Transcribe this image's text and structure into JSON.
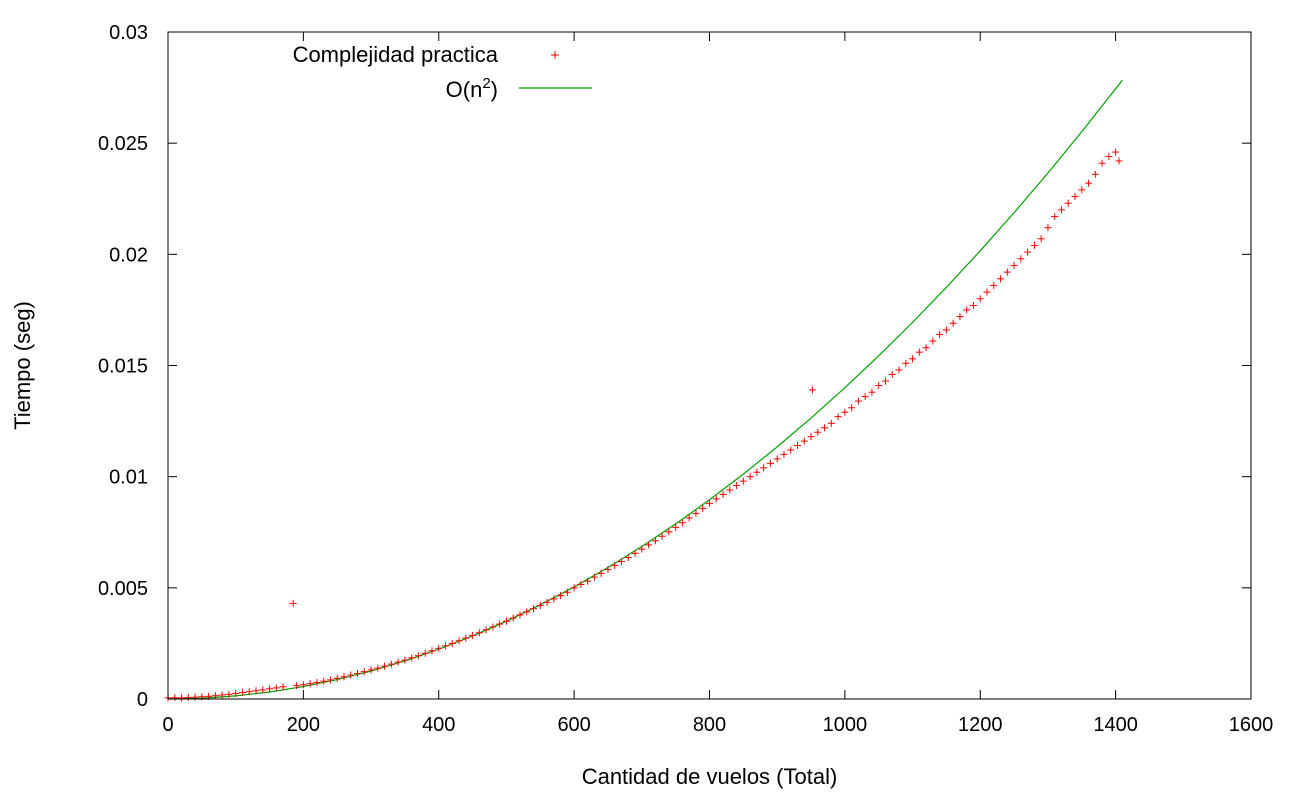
{
  "chart_data": {
    "type": "scatter",
    "title": "",
    "xlabel": "Cantidad de vuelos (Total)",
    "ylabel": "Tiempo (seg)",
    "xlim": [
      0,
      1600
    ],
    "ylim": [
      0,
      0.03
    ],
    "x_ticks": [
      "0",
      "200",
      "400",
      "600",
      "800",
      "1000",
      "1200",
      "1400",
      "1600"
    ],
    "y_ticks": [
      "0",
      "0.005",
      "0.01",
      "0.015",
      "0.02",
      "0.025",
      "0.03"
    ],
    "grid": false,
    "legend_position": "top-left",
    "series": [
      {
        "name": "Complejidad practica",
        "kind": "scatter",
        "marker": "plus",
        "color": "#ff0000",
        "points": [
          [
            0,
            5e-05
          ],
          [
            10,
            6e-05
          ],
          [
            20,
            5e-05
          ],
          [
            30,
            7e-05
          ],
          [
            40,
            8e-05
          ],
          [
            50,
            0.0001
          ],
          [
            60,
            0.00012
          ],
          [
            70,
            0.00015
          ],
          [
            80,
            0.00018
          ],
          [
            90,
            0.00021
          ],
          [
            100,
            0.00025
          ],
          [
            110,
            0.00029
          ],
          [
            120,
            0.00033
          ],
          [
            130,
            0.00037
          ],
          [
            140,
            0.00041
          ],
          [
            150,
            0.00046
          ],
          [
            160,
            0.0005
          ],
          [
            170,
            0.00055
          ],
          [
            185,
            0.0043
          ],
          [
            190,
            0.0006
          ],
          [
            200,
            0.00064
          ],
          [
            210,
            0.00069
          ],
          [
            220,
            0.00074
          ],
          [
            230,
            0.0008
          ],
          [
            240,
            0.00086
          ],
          [
            250,
            0.00093
          ],
          [
            260,
            0.001
          ],
          [
            270,
            0.00108
          ],
          [
            280,
            0.00115
          ],
          [
            290,
            0.00123
          ],
          [
            300,
            0.00131
          ],
          [
            310,
            0.00139
          ],
          [
            320,
            0.00148
          ],
          [
            330,
            0.00157
          ],
          [
            340,
            0.00166
          ],
          [
            350,
            0.00175
          ],
          [
            360,
            0.00185
          ],
          [
            370,
            0.00195
          ],
          [
            380,
            0.00206
          ],
          [
            390,
            0.00217
          ],
          [
            400,
            0.00228
          ],
          [
            410,
            0.00239
          ],
          [
            420,
            0.0025
          ],
          [
            430,
            0.00262
          ],
          [
            440,
            0.00274
          ],
          [
            450,
            0.00286
          ],
          [
            460,
            0.00298
          ],
          [
            470,
            0.00311
          ],
          [
            480,
            0.00324
          ],
          [
            490,
            0.00337
          ],
          [
            500,
            0.0035
          ],
          [
            510,
            0.00364
          ],
          [
            520,
            0.00378
          ],
          [
            530,
            0.00392
          ],
          [
            540,
            0.00406
          ],
          [
            550,
            0.0042
          ],
          [
            560,
            0.00435
          ],
          [
            570,
            0.0045
          ],
          [
            580,
            0.00465
          ],
          [
            590,
            0.0048
          ],
          [
            600,
            0.005
          ],
          [
            610,
            0.00515
          ],
          [
            620,
            0.0053
          ],
          [
            630,
            0.00548
          ],
          [
            640,
            0.00565
          ],
          [
            650,
            0.00582
          ],
          [
            660,
            0.006
          ],
          [
            670,
            0.00618
          ],
          [
            680,
            0.00636
          ],
          [
            690,
            0.00655
          ],
          [
            700,
            0.00674
          ],
          [
            710,
            0.00693
          ],
          [
            720,
            0.00712
          ],
          [
            730,
            0.00732
          ],
          [
            740,
            0.00752
          ],
          [
            750,
            0.00772
          ],
          [
            760,
            0.00793
          ],
          [
            770,
            0.00814
          ],
          [
            780,
            0.00835
          ],
          [
            790,
            0.00857
          ],
          [
            800,
            0.0088
          ],
          [
            810,
            0.009
          ],
          [
            820,
            0.0092
          ],
          [
            830,
            0.0094
          ],
          [
            840,
            0.0096
          ],
          [
            850,
            0.0098
          ],
          [
            860,
            0.01
          ],
          [
            870,
            0.0102
          ],
          [
            880,
            0.0104
          ],
          [
            890,
            0.0106
          ],
          [
            900,
            0.0108
          ],
          [
            910,
            0.011
          ],
          [
            920,
            0.0112
          ],
          [
            930,
            0.0114
          ],
          [
            940,
            0.0116
          ],
          [
            950,
            0.0118
          ],
          [
            952,
            0.0139
          ],
          [
            960,
            0.012
          ],
          [
            970,
            0.0122
          ],
          [
            980,
            0.0124
          ],
          [
            990,
            0.0127
          ],
          [
            1000,
            0.0129
          ],
          [
            1010,
            0.0131
          ],
          [
            1020,
            0.0134
          ],
          [
            1030,
            0.0136
          ],
          [
            1040,
            0.0138
          ],
          [
            1050,
            0.0141
          ],
          [
            1060,
            0.0143
          ],
          [
            1070,
            0.0146
          ],
          [
            1080,
            0.0148
          ],
          [
            1090,
            0.0151
          ],
          [
            1100,
            0.0153
          ],
          [
            1110,
            0.0156
          ],
          [
            1120,
            0.0158
          ],
          [
            1130,
            0.0161
          ],
          [
            1140,
            0.0164
          ],
          [
            1150,
            0.0166
          ],
          [
            1160,
            0.0169
          ],
          [
            1170,
            0.0172
          ],
          [
            1180,
            0.0175
          ],
          [
            1190,
            0.0177
          ],
          [
            1200,
            0.018
          ],
          [
            1210,
            0.0183
          ],
          [
            1220,
            0.0186
          ],
          [
            1230,
            0.0189
          ],
          [
            1240,
            0.0192
          ],
          [
            1250,
            0.0195
          ],
          [
            1260,
            0.0198
          ],
          [
            1270,
            0.0201
          ],
          [
            1280,
            0.0204
          ],
          [
            1290,
            0.0207
          ],
          [
            1300,
            0.0212
          ],
          [
            1310,
            0.0217
          ],
          [
            1320,
            0.022
          ],
          [
            1330,
            0.0223
          ],
          [
            1340,
            0.0226
          ],
          [
            1350,
            0.0229
          ],
          [
            1360,
            0.0232
          ],
          [
            1370,
            0.0236
          ],
          [
            1380,
            0.0241
          ],
          [
            1390,
            0.0244
          ],
          [
            1400,
            0.0246
          ],
          [
            1405,
            0.0242
          ]
        ]
      },
      {
        "name": "O(n2)",
        "kind": "line",
        "color": "#00a000",
        "x": [
          0,
          50,
          100,
          150,
          200,
          250,
          300,
          350,
          400,
          450,
          500,
          550,
          600,
          650,
          700,
          750,
          800,
          850,
          900,
          950,
          1000,
          1050,
          1100,
          1150,
          1200,
          1250,
          1300,
          1350,
          1410
        ],
        "values": [
          0,
          3.5e-05,
          0.00014,
          0.000315,
          0.00056,
          0.000875,
          0.00126,
          0.001715,
          0.00224,
          0.002835,
          0.0035,
          0.004235,
          0.00504,
          0.005915,
          0.00686,
          0.007875,
          0.00896,
          0.010115,
          0.01134,
          0.012635,
          0.014,
          0.015435,
          0.01694,
          0.018515,
          0.02016,
          0.021875,
          0.02366,
          0.025515,
          0.027833
        ]
      }
    ]
  }
}
